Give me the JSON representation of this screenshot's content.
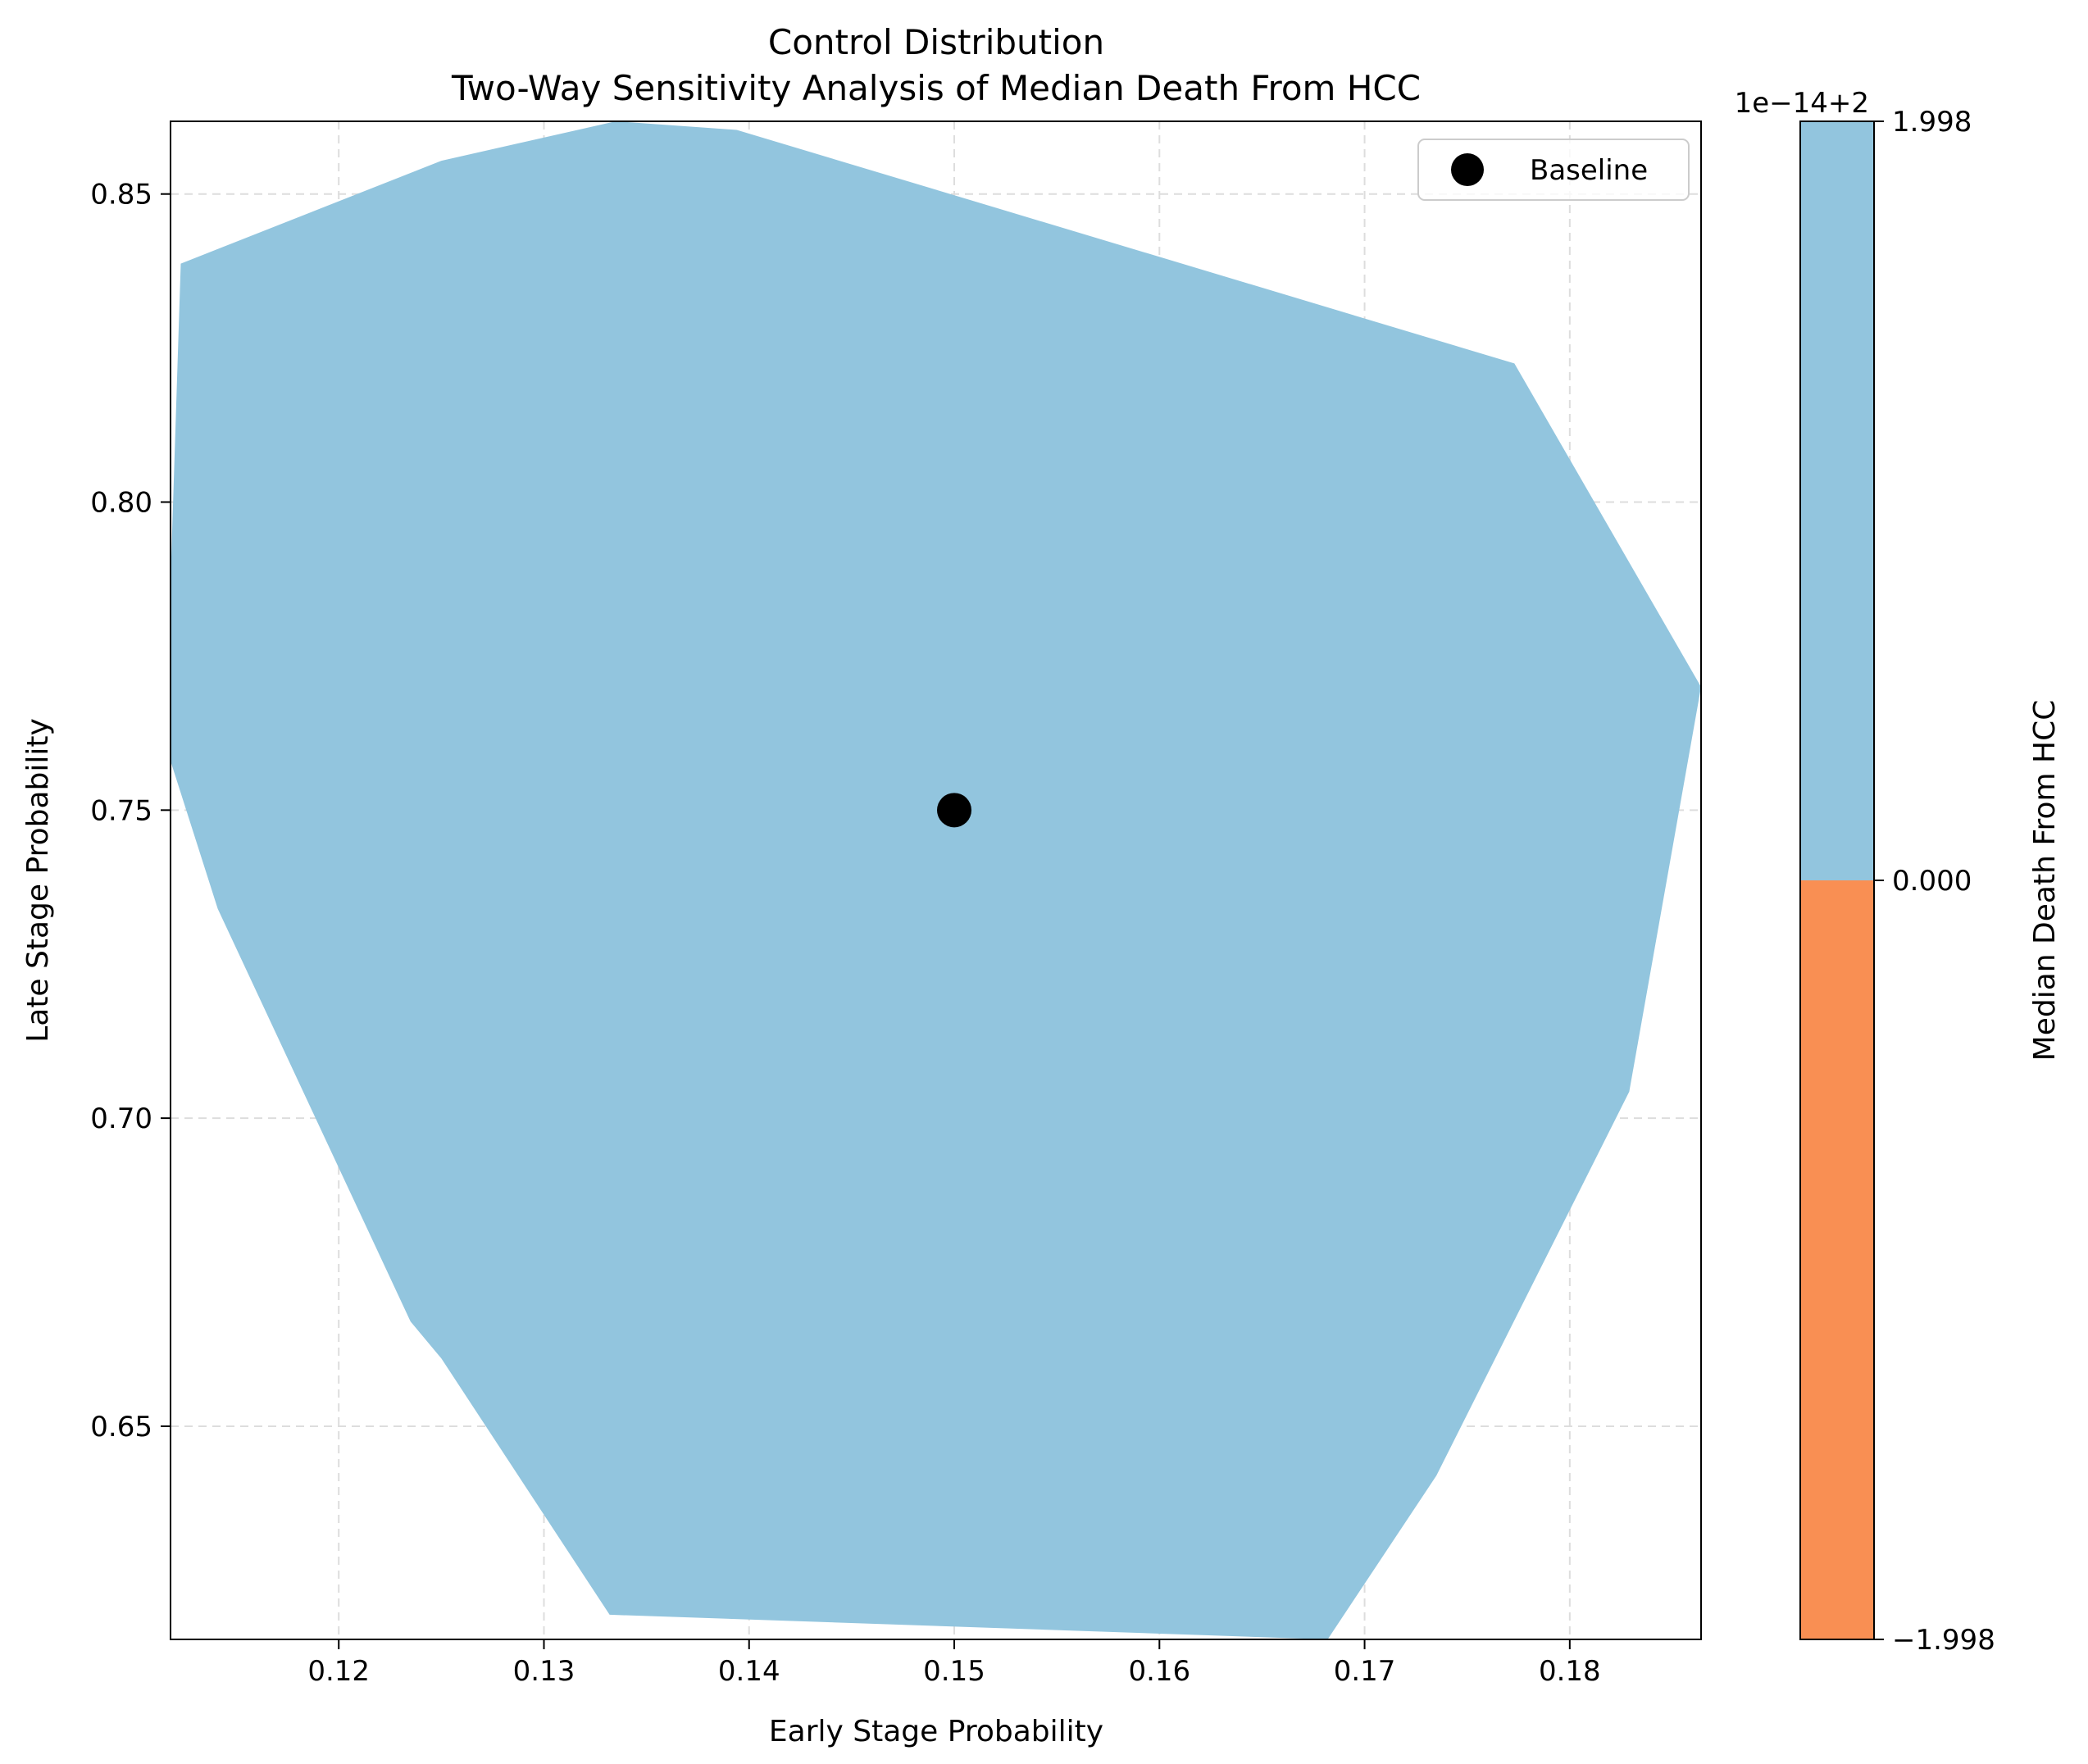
{
  "chart_data": {
    "type": "area",
    "title": "Control Distribution",
    "subtitle": "Two-Way Sensitivity Analysis of Median Death From HCC",
    "xlabel": "Early Stage Probability",
    "ylabel": "Late Stage Probability",
    "xlim": [
      0.1118,
      0.1864
    ],
    "ylim": [
      0.6154,
      0.8618
    ],
    "xticks": [
      0.12,
      0.13,
      0.14,
      0.15,
      0.16,
      0.17,
      0.18
    ],
    "xtick_labels": [
      "0.12",
      "0.13",
      "0.14",
      "0.15",
      "0.16",
      "0.17",
      "0.18"
    ],
    "yticks": [
      0.65,
      0.7,
      0.75,
      0.8,
      0.85
    ],
    "ytick_labels": [
      "0.65",
      "0.70",
      "0.75",
      "0.80",
      "0.85"
    ],
    "grid": true,
    "region": {
      "color": "#92c5de",
      "polygon": [
        [
          0.1123,
          0.8387
        ],
        [
          0.125,
          0.8554
        ],
        [
          0.1335,
          0.8618
        ],
        [
          0.1394,
          0.8604
        ],
        [
          0.1773,
          0.8225
        ],
        [
          0.1864,
          0.77
        ],
        [
          0.1829,
          0.7043
        ],
        [
          0.1735,
          0.642
        ],
        [
          0.1682,
          0.6154
        ],
        [
          0.1332,
          0.6194
        ],
        [
          0.125,
          0.661
        ],
        [
          0.1235,
          0.667
        ],
        [
          0.1141,
          0.734
        ],
        [
          0.1118,
          0.758
        ],
        [
          0.1118,
          0.787
        ]
      ]
    },
    "series": [
      {
        "name": "Baseline",
        "type": "scatter",
        "color": "#000000",
        "x": [
          0.15
        ],
        "y": [
          0.75
        ]
      }
    ],
    "legend": {
      "position": "top-right",
      "entries": [
        "Baseline"
      ]
    },
    "colorbar": {
      "label": "Median Death From HCC",
      "offset_text": "1e−14+2",
      "ticks": [
        1.998,
        0.0,
        -1.998
      ],
      "tick_labels": [
        "1.998",
        "0.000",
        "−1.998"
      ],
      "bands": [
        {
          "from": 0.0,
          "to": 1.998,
          "color": "#92c5de"
        },
        {
          "from": -1.998,
          "to": 0.0,
          "color": "#f98f53"
        }
      ]
    }
  }
}
